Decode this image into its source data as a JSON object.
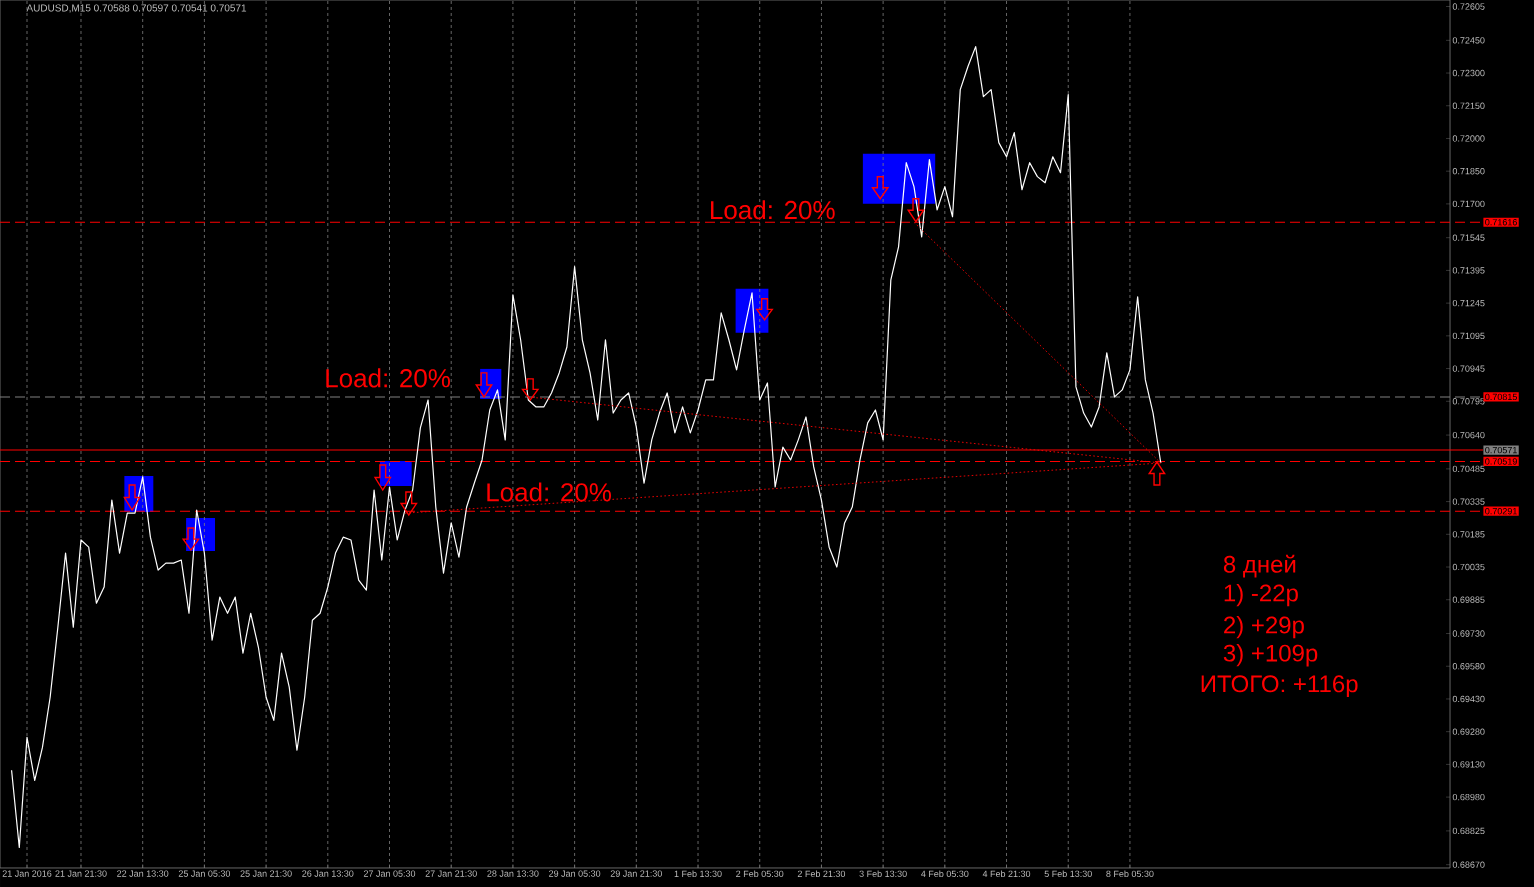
{
  "chart_data": {
    "type": "line",
    "title": "AUDUSD,M15  0.70588 0.70597 0.70541 0.70571",
    "categories": [
      null,
      null,
      null,
      "21 Jan 2016",
      null,
      null,
      null,
      null,
      null,
      null,
      "21 Jan 21:30",
      null,
      null,
      null,
      null,
      null,
      null,
      null,
      "22 Jan 13:30",
      null,
      null,
      null,
      null,
      null,
      null,
      null,
      "25 Jan 05:30",
      null,
      null,
      null,
      null,
      null,
      null,
      null,
      "25 Jan 21:30",
      null,
      null,
      null,
      null,
      null,
      null,
      null,
      "26 Jan 13:30",
      null,
      null,
      null,
      null,
      null,
      null,
      null,
      "27 Jan 05:30",
      null,
      null,
      null,
      null,
      null,
      null,
      null,
      "27 Jan 21:30",
      null,
      null,
      null,
      null,
      null,
      null,
      null,
      "28 Jan 13:30",
      null,
      null,
      null,
      null,
      null,
      null,
      null,
      "29 Jan 05:30",
      null,
      null,
      null,
      null,
      null,
      null,
      null,
      "29 Jan 21:30",
      null,
      null,
      null,
      null,
      null,
      null,
      null,
      "1 Feb 13:30",
      null,
      null,
      null,
      null,
      null,
      null,
      null,
      "2 Feb 05:30",
      null,
      null,
      null,
      null,
      null,
      null,
      null,
      "2 Feb 21:30",
      null,
      null,
      null,
      null,
      null,
      null,
      null,
      "3 Feb 13:30",
      null,
      null,
      null,
      null,
      null,
      null,
      null,
      "4 Feb 05:30",
      null,
      null,
      null,
      null,
      null,
      null,
      null,
      "4 Feb 21:30",
      null,
      null,
      null,
      null,
      null,
      null,
      null,
      "5 Feb 13:30",
      null,
      null,
      null,
      null,
      null,
      null,
      null,
      "8 Feb 05:30",
      null,
      null,
      null,
      null,
      null,
      null,
      null,
      null,
      null,
      null,
      null,
      null,
      null,
      null,
      null,
      null,
      null,
      null,
      null,
      null,
      null,
      null,
      null,
      null,
      null,
      null,
      null,
      null,
      null,
      null,
      null,
      null,
      null,
      null,
      null,
      null,
      null,
      null,
      null,
      null,
      null
    ],
    "series": [
      {
        "color": "#ffffff",
        "values": [
          null,
          0.69103,
          0.68749,
          0.69254,
          0.69057,
          0.69208,
          0.69438,
          0.69759,
          0.70099,
          0.69759,
          0.70159,
          0.70126,
          0.69869,
          0.69943,
          0.70342,
          0.70099,
          0.70282,
          0.70282,
          0.70448,
          0.70172,
          0.70021,
          0.70053,
          0.70053,
          0.70067,
          0.69823,
          0.70296,
          0.70099,
          0.697,
          0.69897,
          0.69823,
          0.69897,
          0.6964,
          0.69823,
          0.69667,
          0.69438,
          0.69332,
          0.6964,
          0.69484,
          0.69195,
          0.69438,
          0.69791,
          0.69823,
          0.69943,
          0.70099,
          0.70172,
          0.70159,
          0.69975,
          0.69929,
          0.70388,
          0.70067,
          0.70402,
          0.70159,
          0.70296,
          0.70388,
          0.70673,
          0.70801,
          0.7031,
          0.70007,
          0.70237,
          0.7008,
          0.7031,
          0.7042,
          0.70526,
          0.70755,
          0.70847,
          0.70618,
          0.71283,
          0.71077,
          0.70801,
          0.70769,
          0.70769,
          0.70833,
          0.70925,
          0.71044,
          0.71412,
          0.71077,
          0.70925,
          0.70709,
          0.71077,
          0.70741,
          0.70801,
          0.70833,
          0.70677,
          0.7042,
          0.70618,
          0.70741,
          0.70833,
          0.7065,
          0.70769,
          0.7065,
          0.70755,
          0.70893,
          0.70893,
          0.712,
          0.71077,
          0.70939,
          0.71122,
          0.71292,
          0.70801,
          0.70879,
          0.70402,
          0.70585,
          0.70526,
          0.70618,
          0.70723,
          0.70494,
          0.70342,
          0.70126,
          0.70035,
          0.70237,
          0.7031,
          0.70526,
          0.70696,
          0.70755,
          0.70618,
          0.71352,
          0.71503,
          0.71889,
          0.71779,
          0.71549,
          0.71903,
          0.71673,
          0.71779,
          0.71641,
          0.72224,
          0.7233,
          0.72421,
          0.72192,
          0.72224,
          0.71981,
          0.71916,
          0.72027,
          0.71765,
          0.71889,
          0.71825,
          0.71797,
          0.71916,
          0.71843,
          0.72201,
          0.70861,
          0.70741,
          0.70677,
          0.70769,
          0.71017,
          0.70815,
          0.70847,
          0.70939,
          0.71274,
          0.70893,
          0.70741,
          0.70512,
          null,
          null,
          null,
          null,
          null,
          null,
          null,
          null,
          null,
          null,
          null,
          null,
          null,
          null,
          null,
          null,
          null,
          null,
          null,
          null,
          null,
          null,
          null,
          null,
          null,
          null,
          null,
          null,
          null,
          null,
          null,
          null,
          null,
          null,
          null,
          null,
          null
        ]
      },
      {
        "color": "#ff0000",
        "line_style": "dotted",
        "values": [
          null,
          null,
          null,
          null,
          null,
          null,
          null,
          null,
          null,
          null,
          null,
          null,
          null,
          null,
          null,
          null,
          null,
          null,
          null,
          null,
          null,
          null,
          null,
          null,
          null,
          null,
          null,
          null,
          null,
          null,
          null,
          null,
          null,
          null,
          null,
          null,
          null,
          null,
          null,
          null,
          null,
          null,
          null,
          null,
          null,
          null,
          null,
          null,
          null,
          null,
          null,
          null,
          0.70282,
          null,
          null,
          null,
          null,
          null,
          null,
          null,
          null,
          null,
          null,
          null,
          null,
          null,
          null,
          null,
          null,
          null,
          null,
          null,
          null,
          null,
          null,
          null,
          null,
          null,
          null,
          null,
          null,
          null,
          null,
          null,
          null,
          null,
          null,
          null,
          null,
          null,
          null,
          null,
          null,
          null,
          null,
          null,
          null,
          null,
          null,
          null,
          null,
          null,
          null,
          null,
          null,
          null,
          null,
          null,
          null,
          null,
          null,
          null,
          null,
          null,
          null,
          null,
          null,
          null,
          null,
          null,
          null,
          null,
          null,
          null,
          null,
          null,
          null,
          null,
          null,
          null,
          null,
          null,
          null,
          null,
          null,
          null,
          null,
          null,
          null,
          null,
          null,
          null,
          null,
          null,
          null,
          null,
          null,
          null,
          null,
          null,
          0.70512,
          null,
          null,
          null,
          null,
          null,
          null,
          null,
          null,
          null,
          null,
          null,
          null,
          null,
          null,
          null,
          null,
          null,
          null,
          null,
          null,
          null,
          null,
          null,
          null,
          null,
          null,
          null,
          null,
          null,
          null,
          null,
          null,
          null,
          null,
          null,
          null,
          null
        ]
      },
      {
        "color": "#ff0000",
        "line_style": "dotted",
        "values": [
          null,
          null,
          null,
          null,
          null,
          null,
          null,
          null,
          null,
          null,
          null,
          null,
          null,
          null,
          null,
          null,
          null,
          null,
          null,
          null,
          null,
          null,
          null,
          null,
          null,
          null,
          null,
          null,
          null,
          null,
          null,
          null,
          null,
          null,
          null,
          null,
          null,
          null,
          null,
          null,
          null,
          null,
          null,
          null,
          null,
          null,
          null,
          null,
          null,
          null,
          null,
          null,
          null,
          null,
          null,
          null,
          null,
          null,
          null,
          null,
          null,
          null,
          null,
          null,
          null,
          null,
          null,
          null,
          0.70815,
          null,
          null,
          null,
          null,
          null,
          null,
          null,
          null,
          null,
          null,
          null,
          null,
          null,
          null,
          null,
          null,
          null,
          null,
          null,
          null,
          null,
          null,
          null,
          null,
          null,
          null,
          null,
          null,
          null,
          null,
          null,
          null,
          null,
          null,
          null,
          null,
          null,
          null,
          null,
          null,
          null,
          null,
          null,
          null,
          null,
          null,
          null,
          null,
          null,
          null,
          null,
          null,
          null,
          null,
          null,
          null,
          null,
          null,
          null,
          null,
          null,
          null,
          null,
          null,
          null,
          null,
          null,
          null,
          null,
          null,
          null,
          null,
          null,
          null,
          null,
          null,
          null,
          null,
          null,
          null,
          null,
          0.70512,
          null,
          null,
          null,
          null,
          null,
          null,
          null,
          null,
          null,
          null,
          null,
          null,
          null,
          null,
          null,
          null,
          null,
          null,
          null,
          null,
          null,
          null,
          null,
          null,
          null,
          null,
          null,
          null,
          null,
          null,
          null,
          null,
          null,
          null,
          null,
          null,
          null
        ]
      },
      {
        "color": "#ff0000",
        "line_style": "dotted",
        "values": [
          null,
          null,
          null,
          null,
          null,
          null,
          null,
          null,
          null,
          null,
          null,
          null,
          null,
          null,
          null,
          null,
          null,
          null,
          null,
          null,
          null,
          null,
          null,
          null,
          null,
          null,
          null,
          null,
          null,
          null,
          null,
          null,
          null,
          null,
          null,
          null,
          null,
          null,
          null,
          null,
          null,
          null,
          null,
          null,
          null,
          null,
          null,
          null,
          null,
          null,
          null,
          null,
          null,
          null,
          null,
          null,
          null,
          null,
          null,
          null,
          null,
          null,
          null,
          null,
          null,
          null,
          null,
          null,
          null,
          null,
          null,
          null,
          null,
          null,
          null,
          null,
          null,
          null,
          null,
          null,
          null,
          null,
          null,
          null,
          null,
          null,
          null,
          null,
          null,
          null,
          null,
          null,
          null,
          null,
          null,
          null,
          null,
          null,
          null,
          null,
          null,
          null,
          null,
          null,
          null,
          null,
          null,
          null,
          null,
          null,
          null,
          null,
          null,
          null,
          null,
          null,
          null,
          null,
          0.71616,
          null,
          null,
          null,
          null,
          null,
          null,
          null,
          null,
          null,
          null,
          null,
          null,
          null,
          null,
          null,
          null,
          null,
          null,
          null,
          null,
          null,
          null,
          null,
          null,
          null,
          null,
          null,
          null,
          null,
          null,
          null,
          0.70512,
          null,
          null,
          null,
          null,
          null,
          null,
          null,
          null,
          null,
          null,
          null,
          null,
          null,
          null,
          null,
          null,
          null,
          null,
          null,
          null,
          null,
          null,
          null,
          null,
          null,
          null,
          null,
          null,
          null,
          null,
          null,
          null,
          null,
          null,
          null,
          null,
          null
        ]
      }
    ],
    "ylim": [
      0.68655,
      0.72635
    ],
    "yticks": [
      {
        "value": 0.72605,
        "label": "0.72605"
      },
      {
        "value": 0.7245,
        "label": "0.72450"
      },
      {
        "value": 0.723,
        "label": "0.72300"
      },
      {
        "value": 0.7215,
        "label": "0.72150"
      },
      {
        "value": 0.72,
        "label": "0.72000"
      },
      {
        "value": 0.7185,
        "label": "0.71850"
      },
      {
        "value": 0.717,
        "label": "0.71700"
      },
      {
        "value": 0.71545,
        "label": "0.71545"
      },
      {
        "value": 0.71395,
        "label": "0.71395"
      },
      {
        "value": 0.71245,
        "label": "0.71245"
      },
      {
        "value": 0.71095,
        "label": "0.71095"
      },
      {
        "value": 0.70945,
        "label": "0.70945"
      },
      {
        "value": 0.70795,
        "label": "0.70795"
      },
      {
        "value": 0.7064,
        "label": "0.70640"
      },
      {
        "value": 0.70485,
        "label": "0.70485"
      },
      {
        "value": 0.70335,
        "label": "0.70335"
      },
      {
        "value": 0.70185,
        "label": "0.70185"
      },
      {
        "value": 0.70035,
        "label": "0.70035"
      },
      {
        "value": 0.69885,
        "label": "0.69885"
      },
      {
        "value": 0.6973,
        "label": "0.69730"
      },
      {
        "value": 0.6958,
        "label": "0.69580"
      },
      {
        "value": 0.6943,
        "label": "0.69430"
      },
      {
        "value": 0.6928,
        "label": "0.69280"
      },
      {
        "value": 0.6913,
        "label": "0.69130"
      },
      {
        "value": 0.6898,
        "label": "0.68980"
      },
      {
        "value": 0.68825,
        "label": "0.68825"
      },
      {
        "value": 0.6867,
        "label": "0.68670"
      }
    ],
    "grid": "x",
    "ref_lines": [
      {
        "axis": "y",
        "value": 0.71616,
        "label": "0.71616",
        "color": "#ff0000",
        "line_style": "dashed"
      },
      {
        "axis": "y",
        "value": 0.70815,
        "label": "0.70815",
        "color": "#808080",
        "line_style": "dashed"
      },
      {
        "axis": "y",
        "value": 0.70571,
        "label": "0.70571",
        "color": "#ff0000",
        "line_style": "solid"
      },
      {
        "axis": "y",
        "value": 0.70519,
        "label": "0.70519",
        "color": "#ff0000",
        "line_style": "dashed"
      },
      {
        "axis": "y",
        "value": 0.70291,
        "label": "0.70291",
        "color": "#ff0000",
        "line_style": "dashed"
      }
    ],
    "annotations": [
      "Load: 20%",
      "Load: 20%",
      "Load: 20%",
      "8 дней",
      "1) -22р",
      "2) +29р",
      "3) +109р",
      "ИТОГО: +116р"
    ]
  }
}
